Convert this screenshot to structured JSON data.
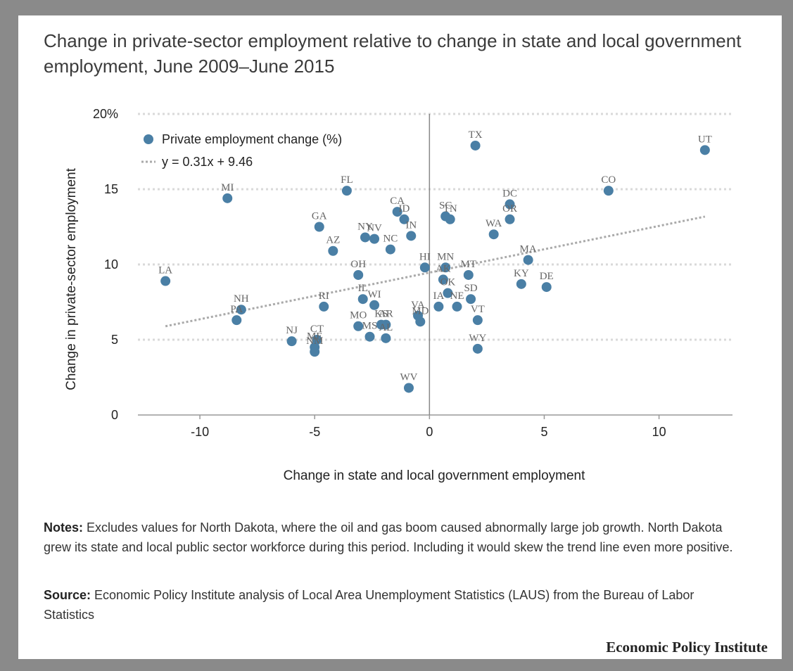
{
  "title": "Change in private-sector employment relative to change in state and local government employment, June 2009–June 2015",
  "notes_label": "Notes:",
  "notes_text": " Excludes values for North Dakota, where the oil and gas boom caused abnormally large job growth. North Dakota grew its state and local public sector workforce during this period. Including it would skew the trend line even more positive.",
  "source_label": "Source:",
  "source_text": " Economic Policy Institute analysis of Local Area Unemployment Statistics (LAUS) from the Bureau of Labor Statistics",
  "brand": "Economic Policy Institute",
  "colors": {
    "point": "#4a7fa5",
    "trend": "#aaaaaa",
    "grid": "#d9d9d9"
  },
  "chart_data": {
    "type": "scatter",
    "xlabel": "Change in state and local government employment",
    "ylabel": "Change in private-sector employment",
    "xlim": [
      -12.7,
      13.2
    ],
    "ylim": [
      0,
      20
    ],
    "xticks": [
      -10,
      -5,
      0,
      5,
      10
    ],
    "xtick_labels": [
      "-10",
      "-5",
      "0",
      "5",
      "10"
    ],
    "yticks": [
      0,
      5,
      10,
      15,
      20
    ],
    "ytick_labels": [
      "0",
      "5",
      "10",
      "15",
      "20%"
    ],
    "grid": "horizontal-dotted",
    "legend": {
      "placement": "top-left",
      "series_label": "Private employment change (%)",
      "trend_label": "y = 0.31x + 9.46"
    },
    "trendline": {
      "slope": 0.31,
      "intercept": 9.46,
      "x_range": [
        -11.5,
        12
      ]
    },
    "points": [
      {
        "label": "UT",
        "x": 12.0,
        "y": 17.6
      },
      {
        "label": "TX",
        "x": 2.0,
        "y": 17.9
      },
      {
        "label": "CO",
        "x": 7.8,
        "y": 14.9
      },
      {
        "label": "FL",
        "x": -3.6,
        "y": 14.9
      },
      {
        "label": "MI",
        "x": -8.8,
        "y": 14.4
      },
      {
        "label": "DC",
        "x": 3.5,
        "y": 14.0
      },
      {
        "label": "CA",
        "x": -1.4,
        "y": 13.5
      },
      {
        "label": "ID",
        "x": -1.1,
        "y": 13.0
      },
      {
        "label": "SC",
        "x": 0.7,
        "y": 13.2
      },
      {
        "label": "TN",
        "x": 0.9,
        "y": 13.0
      },
      {
        "label": "OR",
        "x": 3.5,
        "y": 13.0
      },
      {
        "label": "GA",
        "x": -4.8,
        "y": 12.5
      },
      {
        "label": "WA",
        "x": 2.8,
        "y": 12.0
      },
      {
        "label": "IN",
        "x": -0.8,
        "y": 11.9
      },
      {
        "label": "NY",
        "x": -2.8,
        "y": 11.8
      },
      {
        "label": "NV",
        "x": -2.4,
        "y": 11.7
      },
      {
        "label": "AZ",
        "x": -4.2,
        "y": 10.9
      },
      {
        "label": "NC",
        "x": -1.7,
        "y": 11.0
      },
      {
        "label": "MA",
        "x": 4.3,
        "y": 10.3
      },
      {
        "label": "HI",
        "x": -0.2,
        "y": 9.8
      },
      {
        "label": "MN",
        "x": 0.7,
        "y": 9.8
      },
      {
        "label": "MT",
        "x": 1.7,
        "y": 9.3
      },
      {
        "label": "OH",
        "x": -3.1,
        "y": 9.3
      },
      {
        "label": "AK",
        "x": 0.6,
        "y": 9.0
      },
      {
        "label": "LA",
        "x": -11.5,
        "y": 8.9
      },
      {
        "label": "KY",
        "x": 4.0,
        "y": 8.7
      },
      {
        "label": "DE",
        "x": 5.1,
        "y": 8.5
      },
      {
        "label": "OK",
        "x": 0.8,
        "y": 8.1
      },
      {
        "label": "SD",
        "x": 1.8,
        "y": 7.7
      },
      {
        "label": "IL",
        "x": -2.9,
        "y": 7.7
      },
      {
        "label": "WI",
        "x": -2.4,
        "y": 7.3
      },
      {
        "label": "RI",
        "x": -4.6,
        "y": 7.2
      },
      {
        "label": "IA",
        "x": 0.4,
        "y": 7.2
      },
      {
        "label": "NE",
        "x": 1.2,
        "y": 7.2
      },
      {
        "label": "NH",
        "x": -8.2,
        "y": 7.0
      },
      {
        "label": "VA",
        "x": -0.5,
        "y": 6.6
      },
      {
        "label": "MD",
        "x": -0.4,
        "y": 6.2
      },
      {
        "label": "PA",
        "x": -8.4,
        "y": 6.3
      },
      {
        "label": "VT",
        "x": 2.1,
        "y": 6.3
      },
      {
        "label": "AR",
        "x": -1.9,
        "y": 6.0
      },
      {
        "label": "KS",
        "x": -2.1,
        "y": 6.0
      },
      {
        "label": "MO",
        "x": -3.1,
        "y": 5.9
      },
      {
        "label": "MS",
        "x": -2.6,
        "y": 5.2
      },
      {
        "label": "AL",
        "x": -1.9,
        "y": 5.1
      },
      {
        "label": "CT",
        "x": -4.9,
        "y": 5.0
      },
      {
        "label": "NJ",
        "x": -6.0,
        "y": 4.9
      },
      {
        "label": "ME",
        "x": -5.0,
        "y": 4.5
      },
      {
        "label": "NM",
        "x": -5.0,
        "y": 4.2
      },
      {
        "label": "WY",
        "x": 2.1,
        "y": 4.4
      },
      {
        "label": "WV",
        "x": -0.9,
        "y": 1.8
      }
    ]
  }
}
